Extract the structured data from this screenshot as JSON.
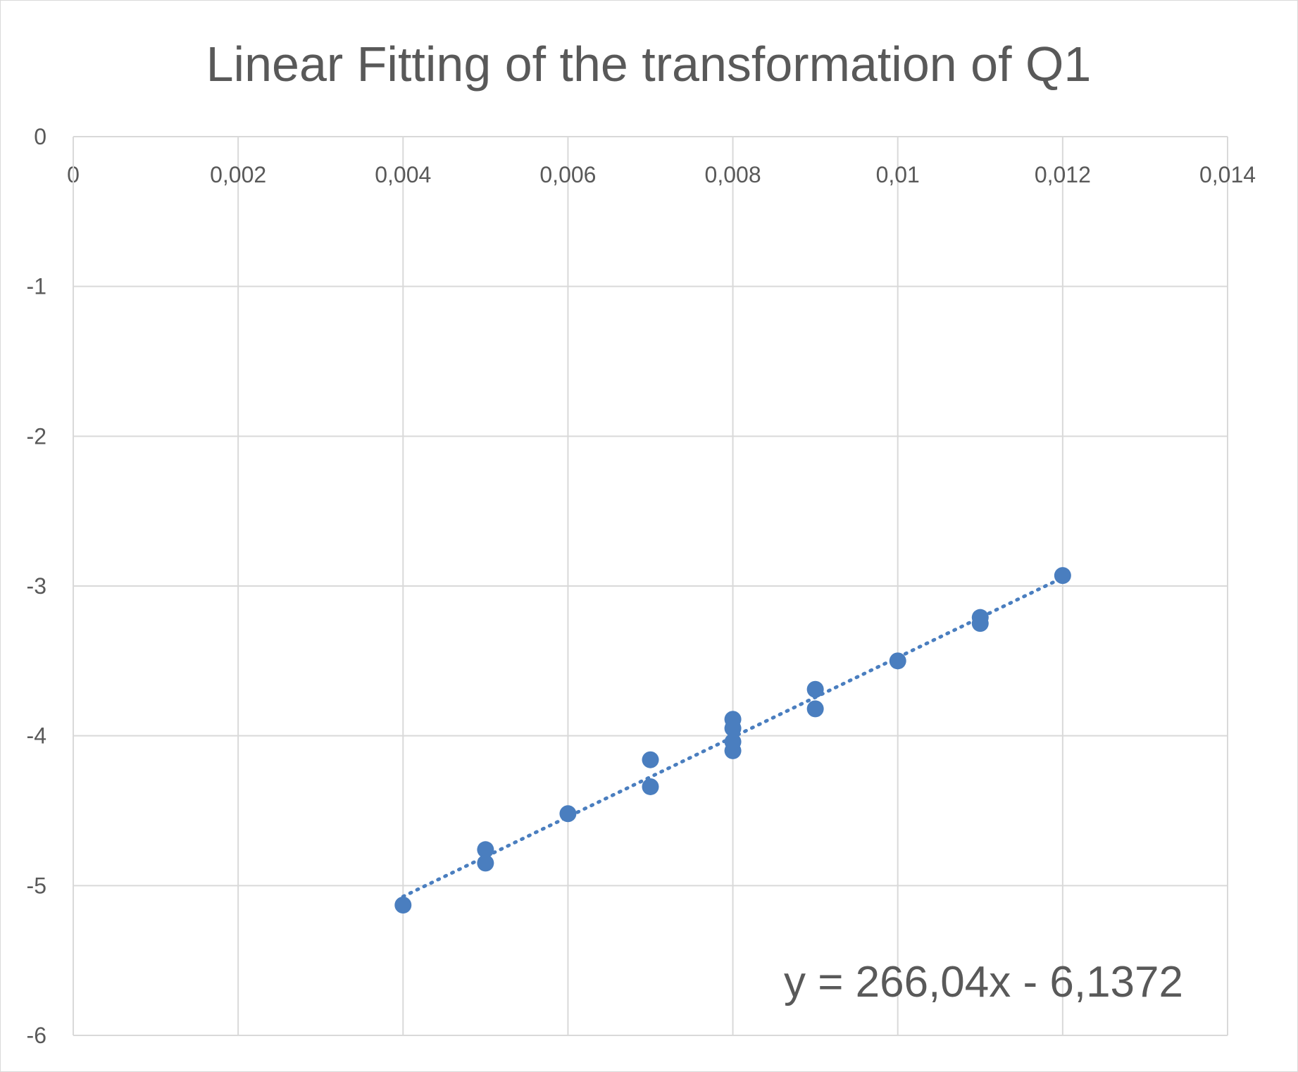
{
  "chart_data": {
    "type": "scatter",
    "title": "Linear Fitting of the transformation of Q1",
    "xlabel": "",
    "ylabel": "",
    "xlim": [
      0,
      0.014
    ],
    "ylim": [
      -6,
      0
    ],
    "x_ticks": [
      "0",
      "0,002",
      "0,004",
      "0,006",
      "0,008",
      "0,01",
      "0,012",
      "0,014"
    ],
    "y_ticks": [
      "0",
      "-1",
      "-2",
      "-3",
      "-4",
      "-5",
      "-6"
    ],
    "grid": true,
    "x_axis_position": "top",
    "points": [
      {
        "x": 0.004,
        "y": -5.13
      },
      {
        "x": 0.005,
        "y": -4.76
      },
      {
        "x": 0.005,
        "y": -4.85
      },
      {
        "x": 0.006,
        "y": -4.52
      },
      {
        "x": 0.007,
        "y": -4.16
      },
      {
        "x": 0.007,
        "y": -4.34
      },
      {
        "x": 0.008,
        "y": -3.89
      },
      {
        "x": 0.008,
        "y": -3.95
      },
      {
        "x": 0.008,
        "y": -4.04
      },
      {
        "x": 0.008,
        "y": -4.1
      },
      {
        "x": 0.009,
        "y": -3.69
      },
      {
        "x": 0.009,
        "y": -3.82
      },
      {
        "x": 0.01,
        "y": -3.5
      },
      {
        "x": 0.011,
        "y": -3.21
      },
      {
        "x": 0.011,
        "y": -3.25
      },
      {
        "x": 0.012,
        "y": -2.93
      }
    ],
    "trendline": {
      "type": "linear",
      "slope": 266.04,
      "intercept": -6.1372,
      "x_range": [
        0.004,
        0.012
      ],
      "style": "dotted",
      "equation": "y = 266,04x - 6,1372"
    },
    "colors": {
      "series": "#4a7ebf",
      "text": "#595959",
      "grid": "#d9d9d9"
    }
  }
}
